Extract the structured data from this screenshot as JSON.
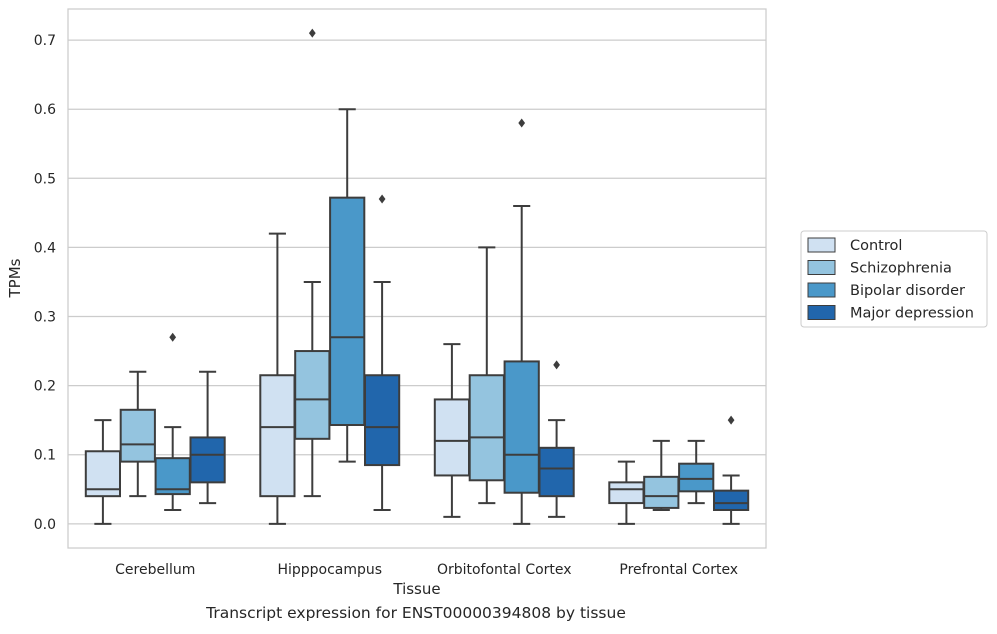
{
  "caption": "Transcript expression for ENST00000394808 by tissue",
  "chart_data": {
    "type": "box",
    "title": "",
    "xlabel": "Tissue",
    "ylabel": "TPMs",
    "ylim": [
      -0.035,
      0.745
    ],
    "yticks": [
      0.0,
      0.1,
      0.2,
      0.3,
      0.4,
      0.5,
      0.6,
      0.7
    ],
    "ytick_labels": [
      "0.0",
      "0.1",
      "0.2",
      "0.3",
      "0.4",
      "0.5",
      "0.6",
      "0.7"
    ],
    "grid": true,
    "legend_position": "right",
    "categories": [
      "Cerebellum",
      "Hipppocampus",
      "Orbitofontal Cortex",
      "Prefrontal Cortex"
    ],
    "series": [
      {
        "name": "Control",
        "color": "#d0e1f2",
        "boxes": [
          {
            "whislo": 0.0,
            "q1": 0.04,
            "med": 0.05,
            "q3": 0.105,
            "whishi": 0.15,
            "fliers": []
          },
          {
            "whislo": 0.0,
            "q1": 0.04,
            "med": 0.14,
            "q3": 0.215,
            "whishi": 0.42,
            "fliers": []
          },
          {
            "whislo": 0.01,
            "q1": 0.07,
            "med": 0.12,
            "q3": 0.18,
            "whishi": 0.26,
            "fliers": []
          },
          {
            "whislo": 0.0,
            "q1": 0.03,
            "med": 0.05,
            "q3": 0.06,
            "whishi": 0.09,
            "fliers": []
          }
        ]
      },
      {
        "name": "Schizophrenia",
        "color": "#94c4df",
        "boxes": [
          {
            "whislo": 0.04,
            "q1": 0.09,
            "med": 0.115,
            "q3": 0.165,
            "whishi": 0.22,
            "fliers": []
          },
          {
            "whislo": 0.04,
            "q1": 0.123,
            "med": 0.18,
            "q3": 0.25,
            "whishi": 0.35,
            "fliers": [
              0.71
            ]
          },
          {
            "whislo": 0.03,
            "q1": 0.063,
            "med": 0.125,
            "q3": 0.215,
            "whishi": 0.4,
            "fliers": []
          },
          {
            "whislo": 0.02,
            "q1": 0.023,
            "med": 0.04,
            "q3": 0.068,
            "whishi": 0.12,
            "fliers": []
          }
        ]
      },
      {
        "name": "Bipolar disorder",
        "color": "#4a98c9",
        "boxes": [
          {
            "whislo": 0.02,
            "q1": 0.043,
            "med": 0.05,
            "q3": 0.095,
            "whishi": 0.14,
            "fliers": [
              0.27
            ]
          },
          {
            "whislo": 0.09,
            "q1": 0.143,
            "med": 0.27,
            "q3": 0.472,
            "whishi": 0.6,
            "fliers": []
          },
          {
            "whislo": 0.0,
            "q1": 0.045,
            "med": 0.1,
            "q3": 0.235,
            "whishi": 0.46,
            "fliers": [
              0.58
            ]
          },
          {
            "whislo": 0.03,
            "q1": 0.047,
            "med": 0.065,
            "q3": 0.087,
            "whishi": 0.12,
            "fliers": []
          }
        ]
      },
      {
        "name": "Major depression",
        "color": "#2166ac",
        "boxes": [
          {
            "whislo": 0.03,
            "q1": 0.06,
            "med": 0.1,
            "q3": 0.125,
            "whishi": 0.22,
            "fliers": []
          },
          {
            "whislo": 0.02,
            "q1": 0.085,
            "med": 0.14,
            "q3": 0.215,
            "whishi": 0.35,
            "fliers": [
              0.47
            ]
          },
          {
            "whislo": 0.01,
            "q1": 0.04,
            "med": 0.08,
            "q3": 0.11,
            "whishi": 0.15,
            "fliers": [
              0.23
            ]
          },
          {
            "whislo": 0.0,
            "q1": 0.02,
            "med": 0.03,
            "q3": 0.048,
            "whishi": 0.07,
            "fliers": [
              0.15
            ]
          }
        ]
      }
    ]
  }
}
